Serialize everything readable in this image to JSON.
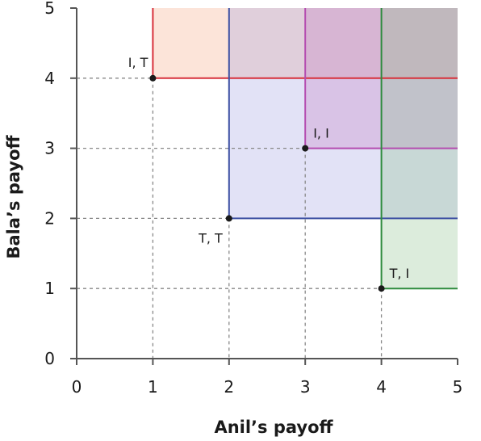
{
  "chart_data": {
    "type": "scatter",
    "xlabel": "Anil’s payoff",
    "ylabel": "Bala’s payoff",
    "xlim": [
      0,
      5
    ],
    "ylim": [
      0,
      5
    ],
    "xticks": [
      0,
      1,
      2,
      3,
      4,
      5
    ],
    "yticks": [
      0,
      1,
      2,
      3,
      4,
      5
    ],
    "grid": false,
    "points": [
      {
        "label": "I, T",
        "x": 1,
        "y": 4,
        "label_side": "upper-left"
      },
      {
        "label": "I, I",
        "x": 3,
        "y": 3,
        "label_side": "upper-right"
      },
      {
        "label": "T, T",
        "x": 2,
        "y": 2,
        "label_side": "lower-left"
      },
      {
        "label": "T, I",
        "x": 4,
        "y": 1,
        "label_side": "upper-right"
      }
    ],
    "regions": [
      {
        "from_point": "I, T",
        "x0": 1,
        "y0": 4,
        "x1": 5,
        "y1": 5,
        "fill": "#f4a582",
        "line": "#d7303b"
      },
      {
        "from_point": "T, T",
        "x0": 2,
        "y0": 2,
        "x1": 5,
        "y1": 5,
        "fill": "#9e9ee0",
        "line": "#3d50a3"
      },
      {
        "from_point": "I, I",
        "x0": 3,
        "y0": 3,
        "x1": 5,
        "y1": 5,
        "fill": "#c57cbf",
        "line": "#b44cb0"
      },
      {
        "from_point": "T, I",
        "x0": 4,
        "y0": 1,
        "x1": 5,
        "y1": 5,
        "fill": "#8cbf8c",
        "line": "#2e8b3e"
      }
    ],
    "colors": {
      "axis": "#555555",
      "dashed_guides": "#888888",
      "point": "#1a1a1a"
    }
  }
}
